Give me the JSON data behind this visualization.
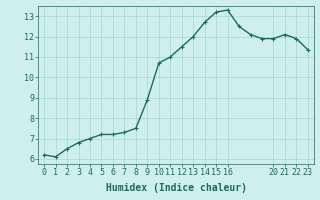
{
  "x": [
    0,
    1,
    2,
    3,
    4,
    5,
    6,
    7,
    8,
    9,
    10,
    11,
    12,
    13,
    14,
    15,
    16,
    17,
    18,
    19,
    20,
    21,
    22,
    23
  ],
  "y": [
    6.2,
    6.1,
    6.5,
    6.8,
    7.0,
    7.2,
    7.2,
    7.3,
    7.5,
    8.9,
    10.7,
    11.0,
    11.5,
    12.0,
    12.7,
    13.2,
    13.3,
    12.5,
    12.1,
    11.9,
    11.9,
    12.1,
    11.9,
    11.35
  ],
  "bg_color": "#cff0ea",
  "line_color": "#1a6b5a",
  "xlabel": "Humidex (Indice chaleur)",
  "xlim": [
    -0.5,
    23.5
  ],
  "ylim": [
    5.75,
    13.5
  ],
  "yticks": [
    6,
    7,
    8,
    9,
    10,
    11,
    12,
    13
  ],
  "xticks": [
    0,
    1,
    2,
    3,
    4,
    5,
    6,
    7,
    8,
    9,
    10,
    11,
    12,
    13,
    14,
    15,
    16,
    20,
    21,
    22,
    23
  ],
  "grid_color": "#a8ddd6",
  "tick_fontsize": 6,
  "xlabel_fontsize": 7,
  "line_width": 1.0,
  "marker_size_pts": 3.5
}
